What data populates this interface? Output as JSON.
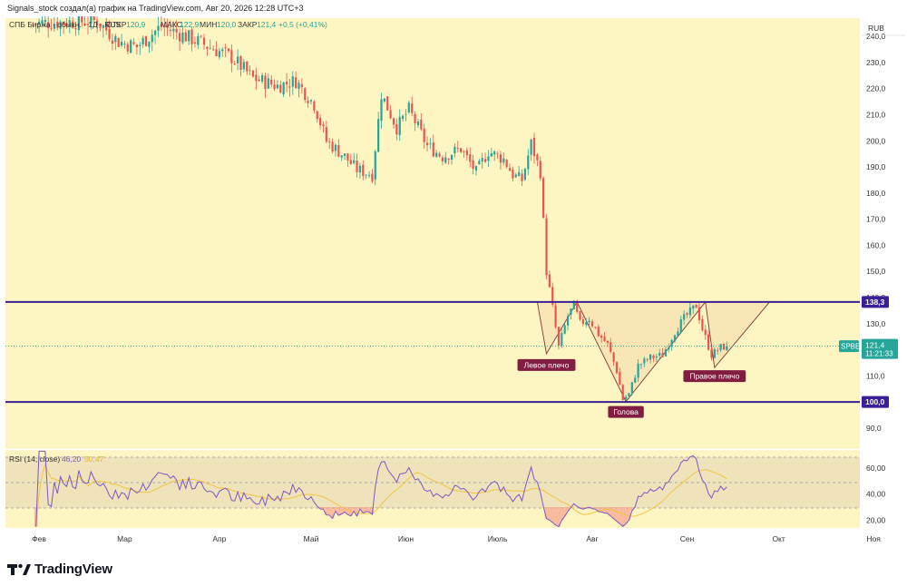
{
  "header": {
    "publisher_line": "Signals_stock создал(а) график на TradingView.com, Авг 20, 2026 12:28 UTC+3"
  },
  "legend": {
    "symbol_desc": "СПБ Биржа · обыкн. · 1Д · RUS",
    "open_label": "ОТКР",
    "open_value": "120,9",
    "high_label": "МАКС",
    "high_value": "122,9",
    "low_label": "МИН",
    "low_value": "120,0",
    "close_label": "ЗАКР",
    "close_value": "121,4",
    "change": "+0,5 (+0,41%)"
  },
  "price_axis": {
    "currency": "RUB",
    "ticks": [
      "240,0",
      "230,0",
      "220,0",
      "210,0",
      "200,0",
      "190,0",
      "180,0",
      "170,0",
      "160,0",
      "150,0",
      "140,0",
      "130,0",
      "120,0",
      "110,0",
      "100,0",
      "90,0"
    ]
  },
  "price_scale": {
    "min": 82,
    "max": 247
  },
  "levels": [
    {
      "value": 138.3,
      "label": "138,3"
    },
    {
      "value": 100.0,
      "label": "100,0"
    }
  ],
  "last_price": {
    "ticker": "SPBE",
    "value": 121.4,
    "label": "121,4",
    "countdown": "11:21:33"
  },
  "pattern_labels": {
    "left_shoulder": "Левое плечо",
    "head": "Голова",
    "right_shoulder": "Правое плечо"
  },
  "rsi": {
    "legend_name": "RSI (14; close)",
    "rsi_value": "46,20",
    "ma_value": "50,47",
    "ticks": [
      "60,00",
      "40,00",
      "20,00"
    ],
    "upper_band": 70,
    "lower_band": 30,
    "mid": 50,
    "range": [
      14,
      74
    ]
  },
  "time_axis": {
    "labels": [
      "Фев",
      "Мар",
      "Апр",
      "Май",
      "Июн",
      "Июль",
      "Авг",
      "Сен",
      "Окт",
      "Ноя"
    ]
  },
  "footer": {
    "brand": "TradingView"
  },
  "colors": {
    "pane_bg": "#fdf6c3",
    "rsi_band": "#eee3bb",
    "up": "#26a69a",
    "down": "#ef5350",
    "level_line": "#3b1f97",
    "pattern_fill": "#f6e2b2",
    "pattern_stroke": "#7b3a3a",
    "label_bg": "#801d40",
    "rsi_line": "#7e57c2",
    "rsi_ma": "#f5c242"
  },
  "chart_data": {
    "type": "candlestick",
    "interval": "1D",
    "currency": "RUB",
    "anchors": [
      {
        "date": "2026-01-30",
        "close": 245
      },
      {
        "date": "2026-02-20",
        "close": 246
      },
      {
        "date": "2026-02-27",
        "close": 238
      },
      {
        "date": "2026-03-05",
        "close": 236
      },
      {
        "date": "2026-03-13",
        "close": 244
      },
      {
        "date": "2026-03-25",
        "close": 238
      },
      {
        "date": "2026-04-05",
        "close": 232
      },
      {
        "date": "2026-04-12",
        "close": 224
      },
      {
        "date": "2026-04-20",
        "close": 221
      },
      {
        "date": "2026-04-26",
        "close": 223
      },
      {
        "date": "2026-05-02",
        "close": 214
      },
      {
        "date": "2026-05-06",
        "close": 200
      },
      {
        "date": "2026-05-12",
        "close": 194
      },
      {
        "date": "2026-05-16",
        "close": 189
      },
      {
        "date": "2026-05-21",
        "close": 187
      },
      {
        "date": "2026-05-24",
        "close": 218
      },
      {
        "date": "2026-05-29",
        "close": 205
      },
      {
        "date": "2026-06-02",
        "close": 212
      },
      {
        "date": "2026-06-08",
        "close": 198
      },
      {
        "date": "2026-06-13",
        "close": 194
      },
      {
        "date": "2026-06-19",
        "close": 197
      },
      {
        "date": "2026-06-24",
        "close": 188
      },
      {
        "date": "2026-06-28",
        "close": 196
      },
      {
        "date": "2026-07-03",
        "close": 193
      },
      {
        "date": "2026-07-06",
        "close": 187
      },
      {
        "date": "2026-07-09",
        "close": 185
      },
      {
        "date": "2026-07-12",
        "close": 199
      },
      {
        "date": "2026-07-15",
        "close": 188
      },
      {
        "date": "2026-07-17",
        "close": 150
      },
      {
        "date": "2026-07-19",
        "close": 136
      },
      {
        "date": "2026-07-21",
        "close": 121
      },
      {
        "date": "2026-07-24",
        "close": 133
      },
      {
        "date": "2026-07-26",
        "close": 137
      },
      {
        "date": "2026-07-28",
        "close": 130
      },
      {
        "date": "2026-07-31",
        "close": 132
      },
      {
        "date": "2026-08-03",
        "close": 126
      },
      {
        "date": "2026-08-06",
        "close": 122
      },
      {
        "date": "2026-08-09",
        "close": 112
      },
      {
        "date": "2026-08-11",
        "close": 101
      },
      {
        "date": "2026-08-13",
        "close": 103
      },
      {
        "date": "2026-08-16",
        "close": 114
      },
      {
        "date": "2026-08-20",
        "close": 117
      },
      {
        "date": "2026-08-24",
        "close": 118
      },
      {
        "date": "2026-08-28",
        "close": 127
      },
      {
        "date": "2026-08-31",
        "close": 132
      },
      {
        "date": "2026-09-04",
        "close": 137
      },
      {
        "date": "2026-09-06",
        "close": 128
      },
      {
        "date": "2026-09-09",
        "close": 118
      },
      {
        "date": "2026-09-12",
        "close": 120.9
      },
      {
        "date": "2026-09-14",
        "close": 121.4
      }
    ],
    "xlabels": [
      "Фев",
      "Мар",
      "Апр",
      "Май",
      "Июн",
      "Июль",
      "Авг",
      "Сен",
      "Окт",
      "Ноя"
    ],
    "ylim": [
      82,
      247
    ]
  }
}
